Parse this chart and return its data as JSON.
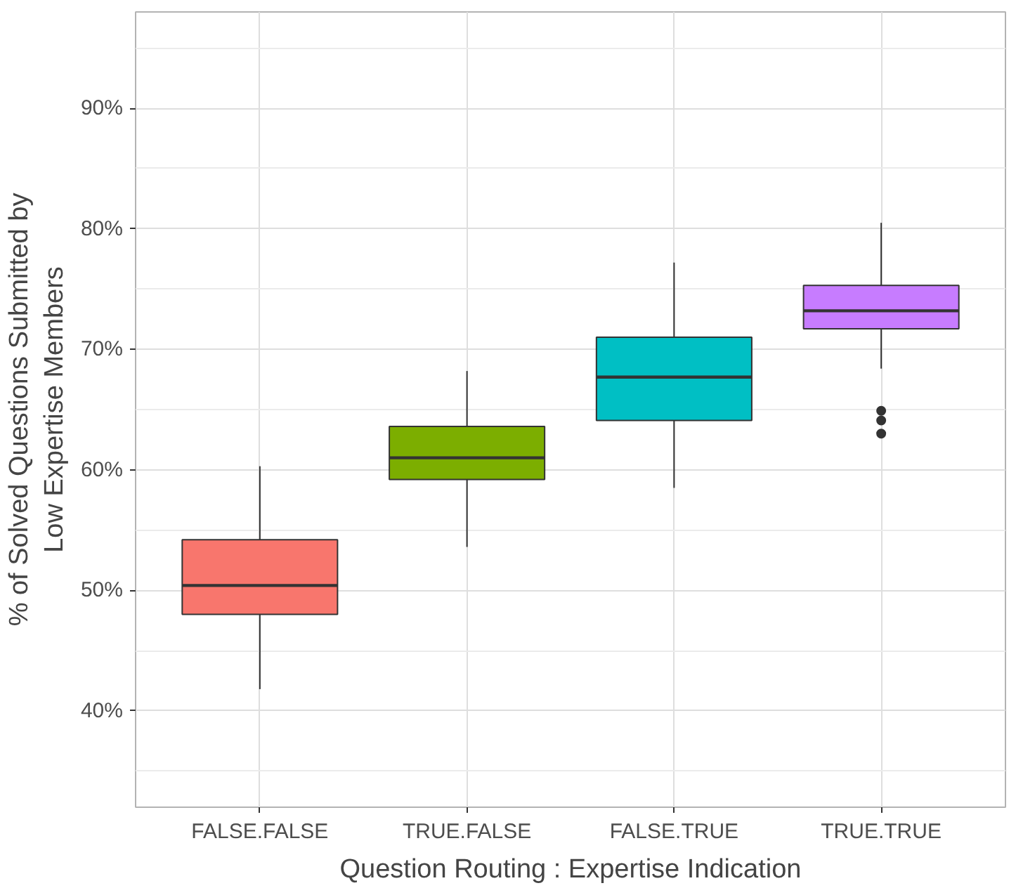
{
  "chart_data": {
    "type": "box",
    "xlabel": "Question Routing : Expertise Indication",
    "ylabel": "% of Solved Questions Submitted by\nLow Expertise Members",
    "categories": [
      "FALSE.FALSE",
      "TRUE.FALSE",
      "FALSE.TRUE",
      "TRUE.TRUE"
    ],
    "colors": [
      "#f8766d",
      "#7cae00",
      "#00bfc4",
      "#c77cff"
    ],
    "boxes": [
      {
        "low": 41.8,
        "q1": 48.0,
        "median": 50.4,
        "q3": 54.2,
        "high": 60.3
      },
      {
        "low": 53.6,
        "q1": 59.2,
        "median": 61.0,
        "q3": 63.6,
        "high": 68.2
      },
      {
        "low": 58.5,
        "q1": 64.1,
        "median": 67.7,
        "q3": 71.0,
        "high": 77.2
      },
      {
        "low": 68.4,
        "q1": 71.7,
        "median": 73.2,
        "q3": 75.3,
        "high": 80.5,
        "outliers": [
          64.9,
          64.1,
          63.0
        ]
      }
    ],
    "ylim": [
      32,
      98
    ],
    "yticks": [
      {
        "value": 40,
        "label": "40%"
      },
      {
        "value": 50,
        "label": "50%"
      },
      {
        "value": 60,
        "label": "60%"
      },
      {
        "value": 70,
        "label": "70%"
      },
      {
        "value": 80,
        "label": "80%"
      },
      {
        "value": 90,
        "label": "90%"
      }
    ],
    "grid": true
  }
}
